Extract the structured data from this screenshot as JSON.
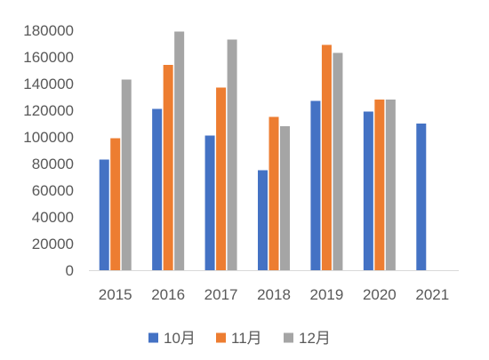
{
  "chart_data": {
    "type": "bar",
    "title": "",
    "xlabel": "",
    "ylabel": "",
    "categories": [
      "2015",
      "2016",
      "2017",
      "2018",
      "2019",
      "2020",
      "2021"
    ],
    "series": [
      {
        "name": "10月",
        "color": "#4472C4",
        "values": [
          83000,
          121000,
          101000,
          75000,
          127000,
          119000,
          110000
        ]
      },
      {
        "name": "11月",
        "color": "#ED7D31",
        "values": [
          99000,
          154000,
          137000,
          115000,
          169000,
          128000,
          null
        ]
      },
      {
        "name": "12月",
        "color": "#A5A5A5",
        "values": [
          143000,
          179000,
          173000,
          108000,
          163000,
          128000,
          null
        ]
      }
    ],
    "ylim": [
      0,
      180000
    ],
    "yticks": [
      0,
      20000,
      40000,
      60000,
      80000,
      100000,
      120000,
      140000,
      160000,
      180000
    ],
    "ytick_labels": [
      "0",
      "20000",
      "40000",
      "60000",
      "80000",
      "100000",
      "120000",
      "140000",
      "160000",
      "180000"
    ],
    "grid": false,
    "legend_position": "bottom"
  }
}
